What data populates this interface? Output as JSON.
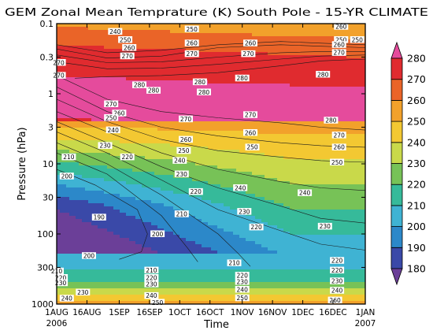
{
  "chart_data": {
    "type": "heatmap",
    "subtype": "filled-contour",
    "title": "GEM Zonal Mean Temprature (K) South Pole - 15-YR CLIMATE",
    "xlabel": "Time",
    "ylabel": "Pressure (hPa)",
    "y_scale": "log",
    "y_inverted": true,
    "ylim": [
      1000,
      0.1
    ],
    "y_ticks": [
      {
        "label": "0.1",
        "value": 0.1
      },
      {
        "label": "0.3",
        "value": 0.3
      },
      {
        "label": "1",
        "value": 1
      },
      {
        "label": "3",
        "value": 3
      },
      {
        "label": "10",
        "value": 10
      },
      {
        "label": "30",
        "value": 30
      },
      {
        "label": "100",
        "value": 100
      },
      {
        "label": "300",
        "value": 300
      },
      {
        "label": "1000",
        "value": 1000
      }
    ],
    "x_ticks": [
      {
        "label": "1AUG",
        "date": "2006-08-01"
      },
      {
        "label": "16AUG",
        "date": "2006-08-16"
      },
      {
        "label": "1SEP",
        "date": "2006-09-01"
      },
      {
        "label": "16SEP",
        "date": "2006-09-16"
      },
      {
        "label": "1OCT",
        "date": "2006-10-01"
      },
      {
        "label": "16OCT",
        "date": "2006-10-16"
      },
      {
        "label": "1NOV",
        "date": "2006-11-01"
      },
      {
        "label": "16NOV",
        "date": "2006-11-16"
      },
      {
        "label": "1DEC",
        "date": "2006-12-01"
      },
      {
        "label": "16DEC",
        "date": "2006-12-16"
      },
      {
        "label": "1JAN",
        "date": "2007-01-01"
      }
    ],
    "x_year_labels": [
      "2006",
      "2007"
    ],
    "colorbar": {
      "levels": [
        180,
        190,
        200,
        210,
        220,
        230,
        240,
        250,
        260,
        270,
        280
      ],
      "colors": [
        "#6b3f98",
        "#3a49a8",
        "#2c88c9",
        "#3fb3d3",
        "#36ba9a",
        "#77c257",
        "#c9d94a",
        "#f3c832",
        "#f2a12b",
        "#ea6428",
        "#e02b2f",
        "#e54b9c"
      ],
      "extend": "both"
    },
    "contours": [
      {
        "level": 240,
        "points": [
          [
            "2006-08-01",
            0.2
          ],
          [
            "2006-08-26",
            0.26
          ],
          [
            "2006-09-22",
            0.24
          ],
          [
            "2006-10-20",
            0.2
          ],
          [
            "2006-11-20",
            0.18
          ],
          [
            "2006-12-10",
            0.19
          ],
          [
            "2007-01-01",
            0.2
          ]
        ]
      },
      {
        "level": 250,
        "points": [
          [
            "2006-08-01",
            0.23
          ],
          [
            "2006-08-26",
            0.31
          ],
          [
            "2006-09-22",
            0.29
          ],
          [
            "2006-10-20",
            0.22
          ],
          [
            "2006-11-20",
            0.2
          ],
          [
            "2006-12-10",
            0.21
          ],
          [
            "2007-01-01",
            0.22
          ]
        ]
      },
      {
        "level": 260,
        "points": [
          [
            "2006-08-01",
            0.28
          ],
          [
            "2006-08-26",
            0.36
          ],
          [
            "2006-09-22",
            0.35
          ],
          [
            "2006-10-20",
            0.3
          ],
          [
            "2006-11-20",
            0.26
          ],
          [
            "2006-12-10",
            0.25
          ],
          [
            "2007-01-01",
            0.25
          ]
        ]
      },
      {
        "level": 270,
        "points": [
          [
            "2006-08-01",
            0.35
          ],
          [
            "2006-08-26",
            0.44
          ],
          [
            "2006-09-22",
            0.43
          ],
          [
            "2006-10-20",
            0.38
          ],
          [
            "2006-11-20",
            0.32
          ],
          [
            "2006-12-10",
            0.29
          ],
          [
            "2007-01-01",
            0.28
          ]
        ]
      },
      {
        "level": 280,
        "points": [
          [
            "2006-08-10",
            0.6
          ],
          [
            "2006-08-26",
            0.57
          ],
          [
            "2006-09-22",
            0.55
          ],
          [
            "2006-10-20",
            0.5
          ],
          [
            "2006-11-20",
            0.4
          ],
          [
            "2006-12-10",
            0.34
          ],
          [
            "2007-01-01",
            0.32
          ]
        ]
      },
      {
        "level": 270,
        "points": [
          [
            "2006-08-01",
            0.55
          ],
          [
            "2006-08-26",
            1.2
          ],
          [
            "2006-09-22",
            1.8
          ],
          [
            "2006-10-20",
            2.2
          ],
          [
            "2006-11-20",
            2.6
          ],
          [
            "2006-12-10",
            3.0
          ],
          [
            "2007-01-01",
            3.3
          ]
        ]
      },
      {
        "level": 260,
        "points": [
          [
            "2006-08-01",
            0.8
          ],
          [
            "2006-08-26",
            1.8
          ],
          [
            "2006-09-22",
            3.0
          ],
          [
            "2006-10-20",
            4.0
          ],
          [
            "2006-11-20",
            5.0
          ],
          [
            "2006-12-10",
            5.5
          ],
          [
            "2007-01-01",
            5.8
          ]
        ]
      },
      {
        "level": 250,
        "points": [
          [
            "2006-08-01",
            1.2
          ],
          [
            "2006-08-26",
            2.5
          ],
          [
            "2006-09-22",
            4.5
          ],
          [
            "2006-10-20",
            6.5
          ],
          [
            "2006-11-20",
            8.0
          ],
          [
            "2006-12-10",
            9.0
          ],
          [
            "2007-01-01",
            9.5
          ]
        ]
      },
      {
        "level": 240,
        "points": [
          [
            "2006-08-01",
            1.8
          ],
          [
            "2006-08-26",
            3.5
          ],
          [
            "2006-09-22",
            7.0
          ],
          [
            "2006-10-20",
            12
          ],
          [
            "2006-11-20",
            18
          ],
          [
            "2006-12-10",
            22
          ],
          [
            "2007-01-01",
            24
          ]
        ]
      },
      {
        "level": 230,
        "points": [
          [
            "2006-08-01",
            2.5
          ],
          [
            "2006-08-26",
            5.0
          ],
          [
            "2006-09-22",
            11
          ],
          [
            "2006-10-20",
            22
          ],
          [
            "2006-11-20",
            40
          ],
          [
            "2006-12-10",
            60
          ],
          [
            "2007-01-01",
            70
          ]
        ]
      },
      {
        "level": 220,
        "points": [
          [
            "2006-08-01",
            3.5
          ],
          [
            "2006-08-26",
            7.0
          ],
          [
            "2006-09-22",
            17
          ],
          [
            "2006-10-20",
            45
          ],
          [
            "2006-11-20",
            90
          ],
          [
            "2006-12-10",
            140
          ],
          [
            "2007-01-01",
            170
          ]
        ]
      },
      {
        "level": 210,
        "points": [
          [
            "2006-08-01",
            5.0
          ],
          [
            "2006-08-26",
            10
          ],
          [
            "2006-09-22",
            28
          ],
          [
            "2006-10-20",
            100
          ],
          [
            "2006-10-30",
            190
          ],
          [
            "2006-11-05",
            290
          ]
        ]
      },
      {
        "level": 200,
        "points": [
          [
            "2006-08-01",
            7.0
          ],
          [
            "2006-08-26",
            14
          ],
          [
            "2006-09-22",
            55
          ],
          [
            "2006-10-05",
            160
          ],
          [
            "2006-10-10",
            250
          ]
        ]
      },
      {
        "level": 190,
        "points": [
          [
            "2006-08-01",
            12
          ],
          [
            "2006-08-20",
            20
          ],
          [
            "2006-09-10",
            45
          ],
          [
            "2006-09-15",
            100
          ],
          [
            "2006-09-12",
            180
          ],
          [
            "2006-09-01",
            230
          ]
        ]
      }
    ],
    "contour_labels": [
      {
        "text": "240",
        "date": "2006-08-30",
        "p": 0.13
      },
      {
        "text": "250",
        "date": "2006-09-04",
        "p": 0.17
      },
      {
        "text": "260",
        "date": "2006-09-06",
        "p": 0.22
      },
      {
        "text": "270",
        "date": "2006-09-05",
        "p": 0.29
      },
      {
        "text": "250",
        "date": "2006-10-07",
        "p": 0.12
      },
      {
        "text": "260",
        "date": "2006-10-07",
        "p": 0.19
      },
      {
        "text": "270",
        "date": "2006-10-07",
        "p": 0.27
      },
      {
        "text": "260",
        "date": "2006-11-05",
        "p": 0.19
      },
      {
        "text": "270",
        "date": "2006-11-04",
        "p": 0.27
      },
      {
        "text": "260",
        "date": "2006-12-20",
        "p": 0.11
      },
      {
        "text": "250",
        "date": "2006-12-20",
        "p": 0.17
      },
      {
        "text": "250",
        "date": "2006-12-28",
        "p": 0.17
      },
      {
        "text": "260",
        "date": "2006-12-19",
        "p": 0.2
      },
      {
        "text": "270",
        "date": "2006-12-19",
        "p": 0.26
      },
      {
        "text": "270",
        "date": "2006-08-02",
        "p": 0.36
      },
      {
        "text": "270",
        "date": "2006-08-02",
        "p": 0.55
      },
      {
        "text": "280",
        "date": "2006-09-11",
        "p": 0.75
      },
      {
        "text": "280",
        "date": "2006-09-18",
        "p": 0.9
      },
      {
        "text": "280",
        "date": "2006-10-11",
        "p": 0.68
      },
      {
        "text": "280",
        "date": "2006-10-13",
        "p": 0.95
      },
      {
        "text": "280",
        "date": "2006-11-01",
        "p": 0.6
      },
      {
        "text": "280",
        "date": "2006-12-11",
        "p": 0.53
      },
      {
        "text": "270",
        "date": "2006-08-28",
        "p": 1.4
      },
      {
        "text": "260",
        "date": "2006-09-01",
        "p": 1.9
      },
      {
        "text": "250",
        "date": "2006-08-28",
        "p": 2.2
      },
      {
        "text": "270",
        "date": "2006-10-04",
        "p": 2.3
      },
      {
        "text": "270",
        "date": "2006-11-05",
        "p": 2.0
      },
      {
        "text": "280",
        "date": "2006-12-15",
        "p": 2.4
      },
      {
        "text": "260",
        "date": "2006-10-04",
        "p": 4.5
      },
      {
        "text": "250",
        "date": "2006-10-03",
        "p": 6.5
      },
      {
        "text": "260",
        "date": "2006-11-05",
        "p": 3.6
      },
      {
        "text": "250",
        "date": "2006-11-06",
        "p": 5.8
      },
      {
        "text": "270",
        "date": "2006-12-19",
        "p": 3.9
      },
      {
        "text": "260",
        "date": "2006-12-19",
        "p": 5.8
      },
      {
        "text": "250",
        "date": "2006-12-18",
        "p": 9.5
      },
      {
        "text": "240",
        "date": "2006-08-29",
        "p": 3.3
      },
      {
        "text": "230",
        "date": "2006-08-25",
        "p": 5.5
      },
      {
        "text": "220",
        "date": "2006-09-05",
        "p": 8.0
      },
      {
        "text": "210",
        "date": "2006-08-07",
        "p": 8.0
      },
      {
        "text": "200",
        "date": "2006-08-06",
        "p": 15
      },
      {
        "text": "240",
        "date": "2006-10-01",
        "p": 9.0
      },
      {
        "text": "230",
        "date": "2006-10-02",
        "p": 14
      },
      {
        "text": "220",
        "date": "2006-10-09",
        "p": 25
      },
      {
        "text": "210",
        "date": "2006-10-02",
        "p": 52
      },
      {
        "text": "190",
        "date": "2006-08-22",
        "p": 58
      },
      {
        "text": "200",
        "date": "2006-09-20",
        "p": 100
      },
      {
        "text": "200",
        "date": "2006-08-17",
        "p": 205
      },
      {
        "text": "240",
        "date": "2006-10-31",
        "p": 22
      },
      {
        "text": "230",
        "date": "2006-11-02",
        "p": 48
      },
      {
        "text": "220",
        "date": "2006-11-08",
        "p": 80
      },
      {
        "text": "210",
        "date": "2006-10-28",
        "p": 260
      },
      {
        "text": "240",
        "date": "2006-12-02",
        "p": 26
      },
      {
        "text": "230",
        "date": "2006-12-12",
        "p": 78
      },
      {
        "text": "220",
        "date": "2006-12-18",
        "p": 240
      },
      {
        "text": "220",
        "date": "2006-12-18",
        "p": 330
      },
      {
        "text": "230",
        "date": "2006-12-18",
        "p": 470
      },
      {
        "text": "240",
        "date": "2006-12-18",
        "p": 640
      },
      {
        "text": "260",
        "date": "2006-12-17",
        "p": 880
      },
      {
        "text": "210",
        "date": "2006-09-17",
        "p": 330
      },
      {
        "text": "220",
        "date": "2006-09-17",
        "p": 420
      },
      {
        "text": "230",
        "date": "2006-09-17",
        "p": 520
      },
      {
        "text": "240",
        "date": "2006-09-17",
        "p": 760
      },
      {
        "text": "250",
        "date": "2006-09-20",
        "p": 950
      },
      {
        "text": "210",
        "date": "2006-08-01",
        "p": 340
      },
      {
        "text": "220",
        "date": "2006-08-03",
        "p": 420
      },
      {
        "text": "230",
        "date": "2006-08-03",
        "p": 500
      },
      {
        "text": "230",
        "date": "2006-08-14",
        "p": 680
      },
      {
        "text": "240",
        "date": "2006-08-06",
        "p": 830
      },
      {
        "text": "220",
        "date": "2006-11-01",
        "p": 390
      },
      {
        "text": "230",
        "date": "2006-11-01",
        "p": 480
      },
      {
        "text": "240",
        "date": "2006-11-01",
        "p": 620
      },
      {
        "text": "250",
        "date": "2006-11-01",
        "p": 820
      }
    ]
  }
}
